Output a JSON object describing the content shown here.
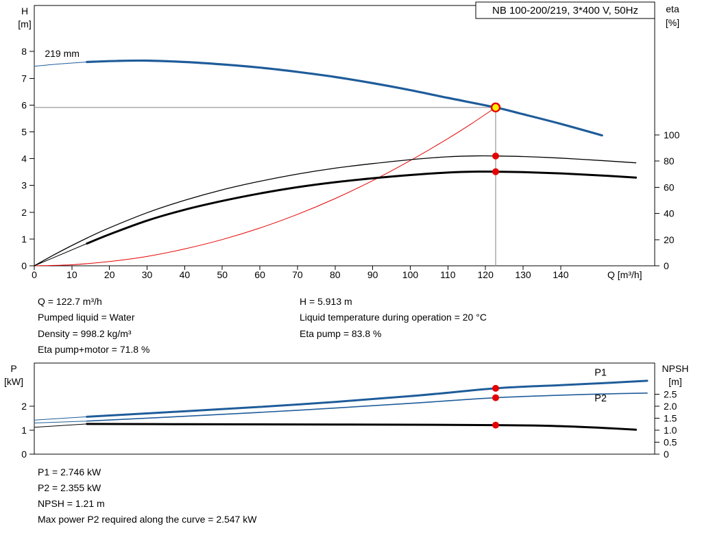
{
  "info_block": {
    "left": [
      "Q = 122.7 m³/h",
      "Pumped liquid = Water",
      "Density = 998.2 kg/m³",
      "Eta pump+motor = 71.8 %"
    ],
    "right": [
      "H = 5.913 m",
      "Liquid temperature during operation = 20 °C",
      "Eta pump = 83.8 %"
    ]
  },
  "power_block": [
    "P1 = 2.746 kW",
    "P2 = 2.355 kW",
    "NPSH = 1.21 m",
    "Max power P2 required along the curve = 2.547 kW"
  ],
  "colors": {
    "curve_blue": "#1e5c9a",
    "curve_black": "#000000",
    "system_red": "#e60000",
    "marker_red": "#e60000",
    "duty_yellow": "#ffee00",
    "crosshair_gray": "#808080"
  },
  "chart_data": [
    {
      "id": "hq-eta-chart",
      "type": "line",
      "title": "NB 100-200/219, 3*400 V, 50Hz",
      "x_axis": {
        "label": "Q [m³/h]",
        "min": 0,
        "max": 165,
        "ticks": [
          {
            "v": 0,
            "l": "0"
          },
          {
            "v": 10,
            "l": "10"
          },
          {
            "v": 20,
            "l": "20"
          },
          {
            "v": 30,
            "l": "30"
          },
          {
            "v": 40,
            "l": "40"
          },
          {
            "v": 50,
            "l": "50"
          },
          {
            "v": 60,
            "l": "60"
          },
          {
            "v": 70,
            "l": "70"
          },
          {
            "v": 80,
            "l": "80"
          },
          {
            "v": 90,
            "l": "90"
          },
          {
            "v": 100,
            "l": "100"
          },
          {
            "v": 110,
            "l": "110"
          },
          {
            "v": 120,
            "l": "120"
          },
          {
            "v": 130,
            "l": "130"
          },
          {
            "v": 140,
            "l": "140"
          }
        ]
      },
      "y_left": {
        "label_lines": [
          "H",
          "[m]"
        ],
        "min": 0,
        "max": 9.72,
        "ticks": [
          {
            "v": 0,
            "l": "0"
          },
          {
            "v": 1,
            "l": "1"
          },
          {
            "v": 2,
            "l": "2"
          },
          {
            "v": 3,
            "l": "3"
          },
          {
            "v": 4,
            "l": "4"
          },
          {
            "v": 5,
            "l": "5"
          },
          {
            "v": 6,
            "l": "6"
          },
          {
            "v": 7,
            "l": "7"
          },
          {
            "v": 8,
            "l": "8"
          }
        ]
      },
      "y_right": {
        "label_lines": [
          "eta",
          "[%]"
        ],
        "min": 0,
        "max": 198.7,
        "ticks": [
          {
            "v": 0,
            "l": "0"
          },
          {
            "v": 20,
            "l": "20"
          },
          {
            "v": 40,
            "l": "40"
          },
          {
            "v": 60,
            "l": "60"
          },
          {
            "v": 80,
            "l": "80"
          },
          {
            "v": 100,
            "l": "100"
          }
        ]
      },
      "series": [
        {
          "name": "duty-crosshair-vertical",
          "axis": "left",
          "color": "#808080",
          "width": 1,
          "smooth": false,
          "points": [
            [
              122.7,
              0
            ],
            [
              122.7,
              5.913
            ]
          ]
        },
        {
          "name": "duty-crosshair-horizontal",
          "axis": "left",
          "color": "#808080",
          "width": 1,
          "smooth": false,
          "points": [
            [
              0,
              5.913
            ],
            [
              122.7,
              5.913
            ]
          ]
        },
        {
          "name": "system-curve",
          "axis": "left",
          "color": "#e60000",
          "width": 1,
          "points": [
            [
              0,
              0
            ],
            [
              10,
              0.04
            ],
            [
              20,
              0.16
            ],
            [
              30,
              0.35
            ],
            [
              40,
              0.63
            ],
            [
              50,
              0.98
            ],
            [
              60,
              1.41
            ],
            [
              70,
              1.92
            ],
            [
              80,
              2.51
            ],
            [
              90,
              3.18
            ],
            [
              100,
              3.93
            ],
            [
              110,
              4.75
            ],
            [
              116,
              5.28
            ],
            [
              122.7,
              5.913
            ]
          ]
        },
        {
          "name": "eta-pump-curve",
          "axis": "right",
          "color": "#000000",
          "width": 1.3,
          "points": [
            [
              0,
              0
            ],
            [
              5,
              8
            ],
            [
              10,
              15.5
            ],
            [
              15,
              22.5
            ],
            [
              20,
              29
            ],
            [
              30,
              40.5
            ],
            [
              40,
              50
            ],
            [
              50,
              58
            ],
            [
              60,
              64.5
            ],
            [
              70,
              70
            ],
            [
              80,
              74.5
            ],
            [
              90,
              78
            ],
            [
              100,
              81
            ],
            [
              110,
              83.2
            ],
            [
              118,
              83.9
            ],
            [
              122.7,
              83.8
            ],
            [
              130,
              83.4
            ],
            [
              140,
              82.2
            ],
            [
              151,
              80.3
            ],
            [
              160,
              78.6
            ]
          ]
        },
        {
          "name": "eta-pump-motor-lead",
          "axis": "right",
          "color": "#000000",
          "width": 1,
          "points": [
            [
              0,
              0
            ],
            [
              14,
              17
            ]
          ]
        },
        {
          "name": "eta-pump-motor-curve",
          "axis": "right",
          "color": "#000000",
          "width": 3,
          "points": [
            [
              14,
              17
            ],
            [
              20,
              24
            ],
            [
              30,
              34.5
            ],
            [
              40,
              42.8
            ],
            [
              50,
              49.5
            ],
            [
              60,
              55.2
            ],
            [
              70,
              60
            ],
            [
              80,
              63.8
            ],
            [
              90,
              66.8
            ],
            [
              100,
              69.3
            ],
            [
              110,
              71.2
            ],
            [
              118,
              71.9
            ],
            [
              122.7,
              71.8
            ],
            [
              130,
              71.5
            ],
            [
              140,
              70.5
            ],
            [
              151,
              68.9
            ],
            [
              160,
              67.3
            ]
          ]
        },
        {
          "name": "head-curve-lead",
          "axis": "left",
          "color": "#1e5c9a",
          "width": 1,
          "points": [
            [
              0,
              7.45
            ],
            [
              6,
              7.53
            ],
            [
              14,
              7.61
            ]
          ]
        },
        {
          "name": "head-curve",
          "axis": "left",
          "color": "#1e5c9a",
          "width": 3.2,
          "points": [
            [
              14,
              7.61
            ],
            [
              22,
              7.65
            ],
            [
              30,
              7.66
            ],
            [
              40,
              7.61
            ],
            [
              50,
              7.52
            ],
            [
              60,
              7.4
            ],
            [
              70,
              7.24
            ],
            [
              80,
              7.05
            ],
            [
              90,
              6.82
            ],
            [
              100,
              6.56
            ],
            [
              110,
              6.27
            ],
            [
              122.7,
              5.913
            ],
            [
              130,
              5.66
            ],
            [
              140,
              5.3
            ],
            [
              151,
              4.87
            ]
          ]
        }
      ],
      "markers": [
        {
          "name": "eta-pump-point",
          "axis": "right",
          "x": 122.7,
          "y": 83.8,
          "r": 5,
          "fill": "#e60000"
        },
        {
          "name": "eta-pump-motor-point",
          "axis": "right",
          "x": 122.7,
          "y": 71.8,
          "r": 5,
          "fill": "#e60000"
        },
        {
          "name": "duty-point",
          "axis": "left",
          "x": 122.7,
          "y": 5.913,
          "r": 6,
          "fill": "#ffee00",
          "stroke": "#e60000",
          "stroke_width": 2.4
        }
      ],
      "annotations": [
        {
          "name": "impeller-diameter-label",
          "text": "219 mm",
          "axis": "left",
          "x": 2.8,
          "y": 7.8,
          "color": "#000000",
          "size": 14
        }
      ]
    },
    {
      "id": "power-npsh-chart",
      "type": "line",
      "x_axis": {
        "label": "",
        "min": 0,
        "max": 165,
        "ticks": []
      },
      "y_left": {
        "label_lines": [
          "P",
          "[kW]"
        ],
        "min": 0,
        "max": 3.8,
        "ticks": [
          {
            "v": 0,
            "l": "0"
          },
          {
            "v": 1,
            "l": "1"
          },
          {
            "v": 2,
            "l": "2"
          }
        ]
      },
      "y_right": {
        "label_lines": [
          "NPSH",
          "[m]"
        ],
        "min": 0,
        "max": 3.8,
        "ticks": [
          {
            "v": 0,
            "l": "0"
          },
          {
            "v": 0.5,
            "l": "0.5"
          },
          {
            "v": 1,
            "l": "1.0"
          },
          {
            "v": 1.5,
            "l": "1.5"
          },
          {
            "v": 2,
            "l": "2.0"
          },
          {
            "v": 2.5,
            "l": "2.5"
          }
        ]
      },
      "series": [
        {
          "name": "npsh-curve-lead",
          "axis": "right",
          "color": "#000000",
          "width": 1,
          "points": [
            [
              0,
              1.12
            ],
            [
              14,
              1.26
            ]
          ]
        },
        {
          "name": "npsh-curve",
          "axis": "right",
          "color": "#000000",
          "width": 3,
          "points": [
            [
              14,
              1.26
            ],
            [
              40,
              1.25
            ],
            [
              70,
              1.24
            ],
            [
              100,
              1.23
            ],
            [
              122.7,
              1.21
            ],
            [
              135,
              1.19
            ],
            [
              145,
              1.14
            ],
            [
              152,
              1.09
            ],
            [
              160,
              1.02
            ]
          ]
        },
        {
          "name": "p2-curve-lead",
          "axis": "left",
          "color": "#1e5c9a",
          "width": 1,
          "points": [
            [
              0,
              1.3
            ],
            [
              14,
              1.38
            ]
          ]
        },
        {
          "name": "p2-curve",
          "axis": "left",
          "color": "#1e5c9a",
          "width": 1.6,
          "points": [
            [
              14,
              1.38
            ],
            [
              40,
              1.58
            ],
            [
              70,
              1.83
            ],
            [
              100,
              2.12
            ],
            [
              122.7,
              2.355
            ],
            [
              140,
              2.46
            ],
            [
              151,
              2.51
            ],
            [
              163,
              2.547
            ]
          ]
        },
        {
          "name": "p1-curve-lead",
          "axis": "left",
          "color": "#1e5c9a",
          "width": 1,
          "points": [
            [
              0,
              1.42
            ],
            [
              14,
              1.56
            ]
          ]
        },
        {
          "name": "p1-curve",
          "axis": "left",
          "color": "#1e5c9a",
          "width": 3,
          "points": [
            [
              14,
              1.56
            ],
            [
              40,
              1.79
            ],
            [
              70,
              2.07
            ],
            [
              100,
              2.42
            ],
            [
              122.7,
              2.746
            ],
            [
              140,
              2.88
            ],
            [
              151,
              2.96
            ],
            [
              163,
              3.06
            ]
          ]
        }
      ],
      "markers": [
        {
          "name": "p1-point",
          "axis": "left",
          "x": 122.7,
          "y": 2.746,
          "r": 5,
          "fill": "#e60000"
        },
        {
          "name": "p2-point",
          "axis": "left",
          "x": 122.7,
          "y": 2.355,
          "r": 5,
          "fill": "#e60000"
        },
        {
          "name": "npsh-point",
          "axis": "right",
          "x": 122.7,
          "y": 1.21,
          "r": 5,
          "fill": "#e60000"
        }
      ],
      "annotations": [
        {
          "name": "p1-curve-label",
          "text": "P1",
          "axis": "left",
          "x": 149,
          "y": 3.27,
          "color": "#1e5c9a",
          "size": 14.5
        },
        {
          "name": "p2-curve-label",
          "text": "P2",
          "axis": "left",
          "x": 149,
          "y": 2.2,
          "color": "#1e5c9a",
          "size": 14.5
        }
      ]
    }
  ]
}
